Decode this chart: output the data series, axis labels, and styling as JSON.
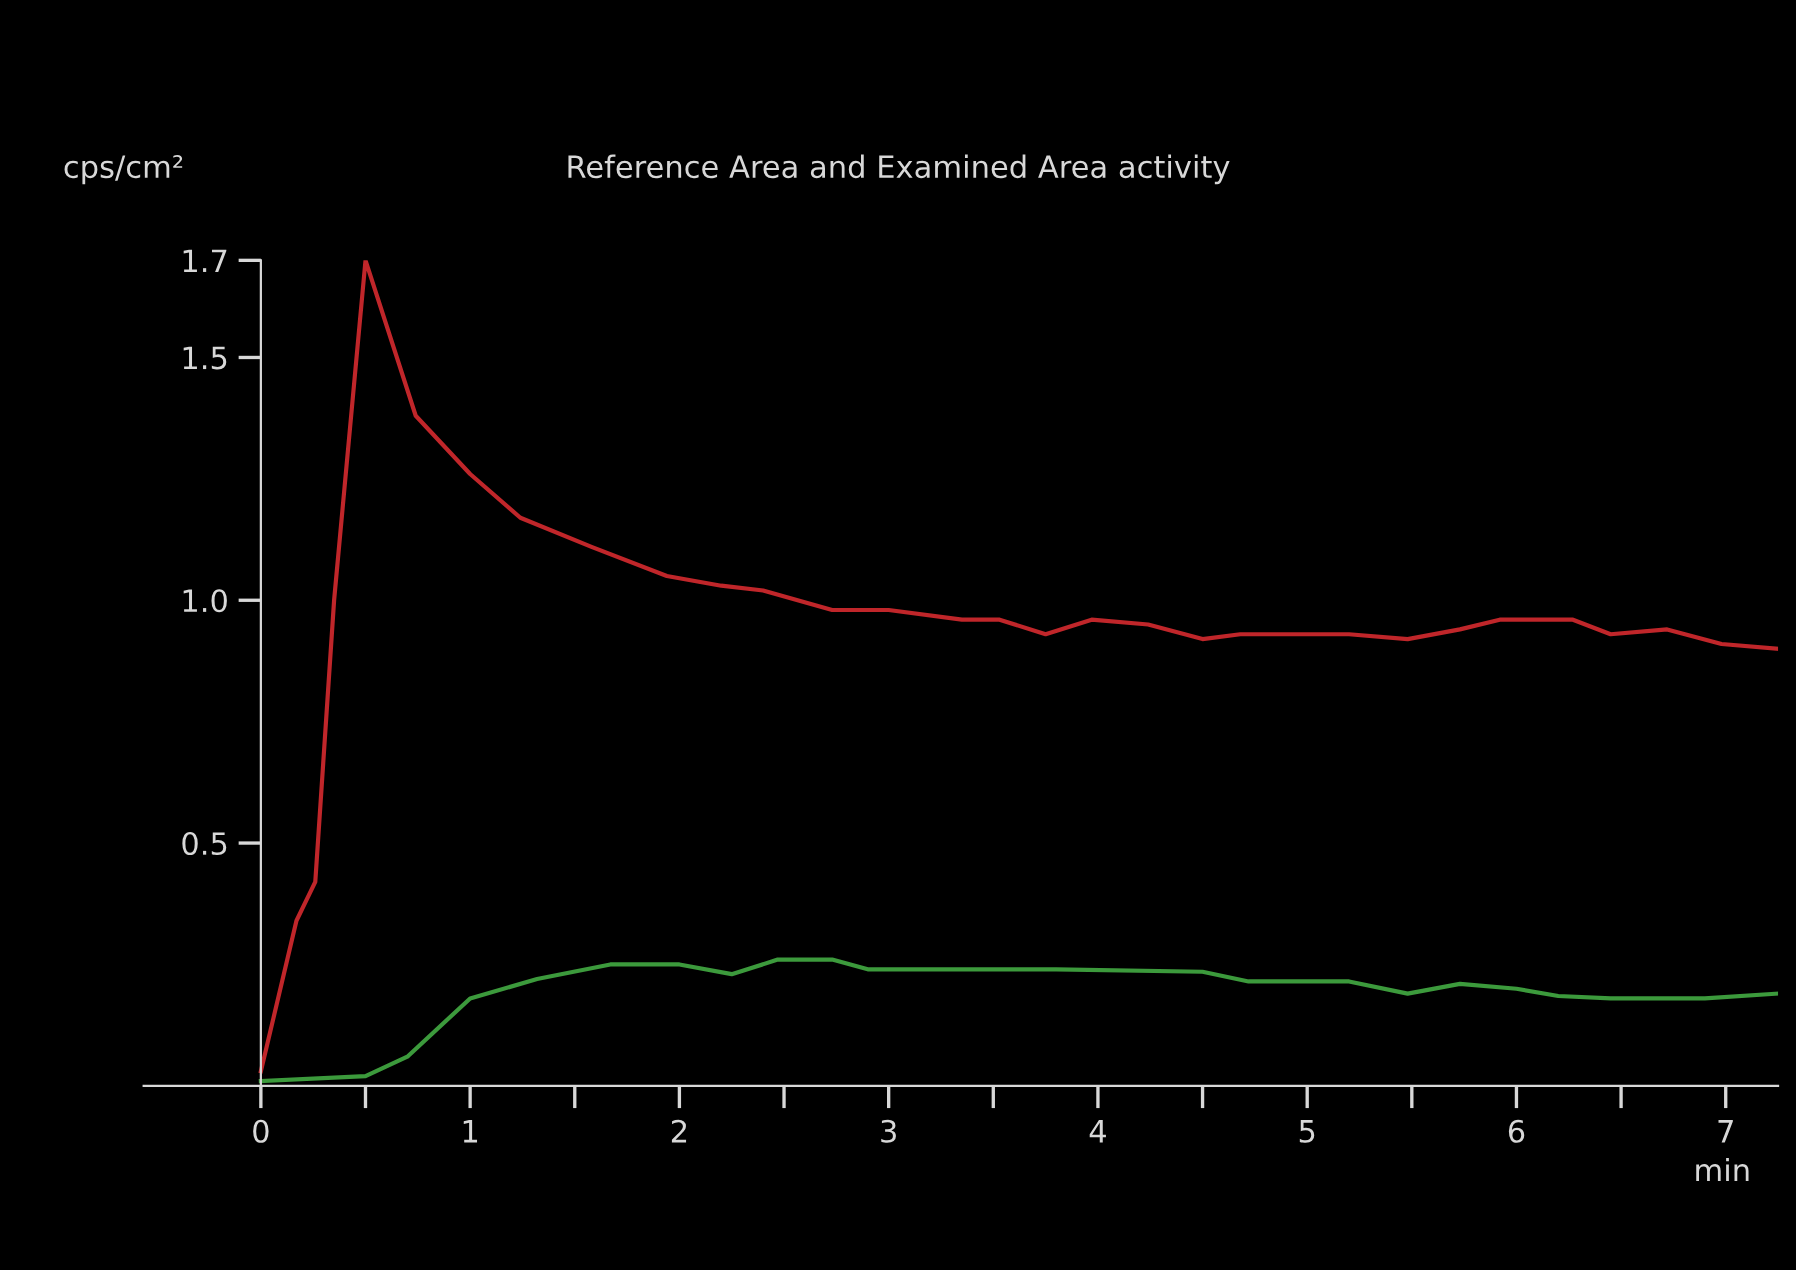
{
  "chart_data": {
    "type": "line",
    "title": "Reference Area and Examined Area activity",
    "ylabel": "cps/cm²",
    "xlabel": "min",
    "xlim": [
      -0.56,
      7.25
    ],
    "ylim": [
      0,
      1.7
    ],
    "xticks": [
      0,
      {
        "value": 0.5,
        "label": null
      },
      1,
      {
        "value": 1.5,
        "label": null
      },
      2,
      {
        "value": 2.5,
        "label": null
      },
      3,
      {
        "value": 3.5,
        "label": null
      },
      4,
      {
        "value": 4.5,
        "label": null
      },
      5,
      {
        "value": 5.5,
        "label": null
      },
      6,
      {
        "value": 6.5,
        "label": null
      },
      7
    ],
    "yticks": [
      0.5,
      {
        "value": 1,
        "label": "1.0"
      },
      1.5,
      1.7
    ],
    "grid": false,
    "legend": false,
    "marker": "none",
    "line_style": "solid",
    "series": [
      {
        "color": "#c0262a",
        "x": [
          0,
          0.17,
          0.26,
          0.35,
          0.5,
          0.74,
          1.0,
          1.24,
          1.58,
          1.94,
          2.2,
          2.4,
          2.73,
          3.0,
          3.35,
          3.53,
          3.75,
          3.97,
          4.24,
          4.5,
          4.68,
          5.2,
          5.48,
          5.73,
          5.92,
          6.27,
          6.45,
          6.72,
          6.98,
          7.25
        ],
        "values": [
          0.03,
          0.34,
          0.42,
          1.0,
          1.7,
          1.38,
          1.26,
          1.17,
          1.11,
          1.05,
          1.03,
          1.02,
          0.98,
          0.98,
          0.96,
          0.96,
          0.93,
          0.96,
          0.95,
          0.92,
          0.93,
          0.93,
          0.92,
          0.94,
          0.96,
          0.96,
          0.93,
          0.94,
          0.91,
          0.9
        ]
      },
      {
        "color": "#3c9a3c",
        "x": [
          0,
          0.5,
          0.7,
          1.0,
          1.32,
          1.67,
          2.0,
          2.25,
          2.47,
          2.73,
          2.9,
          3.09,
          3.8,
          4.5,
          4.72,
          5.2,
          5.48,
          5.73,
          6.0,
          6.2,
          6.45,
          6.9,
          7.25
        ],
        "values": [
          0.01,
          0.02,
          0.06,
          0.18,
          0.22,
          0.25,
          0.25,
          0.23,
          0.26,
          0.26,
          0.24,
          0.24,
          0.24,
          0.235,
          0.215,
          0.215,
          0.19,
          0.21,
          0.2,
          0.185,
          0.18,
          0.18,
          0.19
        ]
      }
    ]
  }
}
